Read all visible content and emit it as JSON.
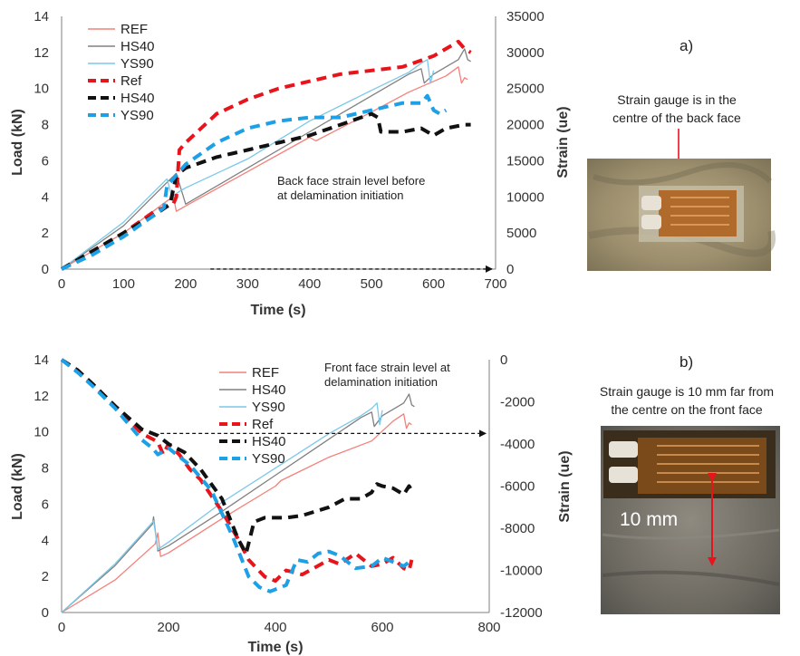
{
  "chart_data": [
    {
      "type": "line",
      "panel_label": "a)",
      "xlabel": "Time (s)",
      "ylabel": "Load (kN)",
      "y2label": "Strain (ue)",
      "xlim": [
        0,
        700
      ],
      "ylim": [
        0,
        14
      ],
      "y2lim": [
        0,
        35000
      ],
      "xticks": [
        "0",
        "100",
        "200",
        "300",
        "400",
        "500",
        "600",
        "700"
      ],
      "yticks": [
        "0",
        "2",
        "4",
        "6",
        "8",
        "10",
        "12",
        "14"
      ],
      "y2ticks": [
        "0",
        "5000",
        "10000",
        "15000",
        "20000",
        "25000",
        "30000",
        "35000"
      ],
      "legend_position": "top-left",
      "grid": false,
      "annotation": {
        "lines": [
          "Back face strain level before",
          "at delamination initiation"
        ],
        "arrow_from": [
          240,
          9.2
        ],
        "arrow_to": [
          695,
          9.2
        ]
      },
      "photo": {
        "caption_lines": [
          "Strain gauge is in the",
          "centre of the back face"
        ]
      },
      "series": [
        {
          "name": "REF",
          "axis": "left",
          "style": "solid",
          "color": "#f4807a",
          "x": [
            0,
            100,
            175,
            178,
            185,
            200,
            300,
            400,
            410,
            500,
            560,
            620,
            640,
            645,
            650,
            655
          ],
          "y": [
            0,
            2.0,
            3.9,
            4.4,
            3.2,
            3.5,
            5.4,
            7.3,
            7.1,
            8.7,
            9.8,
            10.7,
            11.2,
            10.3,
            10.6,
            10.5
          ]
        },
        {
          "name": "HS40",
          "axis": "left",
          "style": "solid",
          "color": "#808080",
          "x": [
            0,
            100,
            170,
            185,
            200,
            300,
            400,
            500,
            560,
            580,
            585,
            600,
            640,
            650,
            655,
            660
          ],
          "y": [
            0,
            2.4,
            4.8,
            5.3,
            3.6,
            5.6,
            7.6,
            9.6,
            10.8,
            11.1,
            10.3,
            10.8,
            11.6,
            12.2,
            11.6,
            11.5
          ]
        },
        {
          "name": "YS90",
          "axis": "left",
          "style": "solid",
          "color": "#7cc8e8",
          "x": [
            0,
            100,
            170,
            178,
            190,
            200,
            300,
            400,
            500,
            560,
            580,
            590,
            595,
            600
          ],
          "y": [
            0,
            2.6,
            5.0,
            4.0,
            4.3,
            4.5,
            6.1,
            8.2,
            9.9,
            10.9,
            11.4,
            11.6,
            10.3,
            11.0
          ]
        },
        {
          "name": "Ref",
          "axis": "right",
          "style": "dashed",
          "color": "#e8141c",
          "x": [
            0,
            50,
            100,
            150,
            180,
            185,
            190,
            200,
            250,
            300,
            350,
            400,
            450,
            500,
            550,
            600,
            640,
            650,
            660
          ],
          "y": [
            0,
            2500,
            5000,
            8000,
            9000,
            10000,
            16500,
            17500,
            21500,
            23500,
            25000,
            26000,
            27000,
            27500,
            28000,
            29500,
            31500,
            30500,
            30000
          ]
        },
        {
          "name": "HS40",
          "axis": "right",
          "style": "dashed",
          "color": "#111111",
          "x": [
            0,
            50,
            100,
            150,
            175,
            185,
            200,
            250,
            300,
            350,
            400,
            450,
            500,
            510,
            515,
            520,
            550,
            580,
            600,
            620,
            650,
            660
          ],
          "y": [
            0,
            2500,
            5000,
            7500,
            9000,
            13000,
            14000,
            15500,
            16500,
            17500,
            18500,
            20000,
            21500,
            21000,
            19000,
            19000,
            19000,
            19500,
            18500,
            19500,
            20000,
            20000
          ]
        },
        {
          "name": "YS90",
          "axis": "right",
          "style": "dashed",
          "color": "#1ea0e6",
          "x": [
            0,
            50,
            100,
            150,
            165,
            170,
            180,
            200,
            250,
            300,
            350,
            400,
            450,
            500,
            550,
            580,
            590,
            600,
            610,
            620
          ],
          "y": [
            0,
            2000,
            4500,
            7500,
            8500,
            11500,
            12500,
            14500,
            17500,
            19500,
            20500,
            21000,
            21000,
            22000,
            23000,
            23000,
            24000,
            22000,
            21500,
            22000
          ]
        }
      ]
    },
    {
      "type": "line",
      "panel_label": "b)",
      "xlabel": "Time (s)",
      "ylabel": "Load (kN)",
      "y2label": "Strain (ue)",
      "xlim": [
        0,
        800
      ],
      "ylim": [
        0,
        14
      ],
      "y2lim": [
        -12000,
        0
      ],
      "xticks": [
        "0",
        "200",
        "400",
        "600",
        "800"
      ],
      "yticks": [
        "0",
        "2",
        "4",
        "6",
        "8",
        "10",
        "12",
        "14"
      ],
      "y2ticks": [
        "0",
        "-2000",
        "-4000",
        "-6000",
        "-8000",
        "-10000",
        "-12000"
      ],
      "legend_position": "top-center",
      "grid": false,
      "annotation": {
        "lines": [
          "Front face strain level at",
          "delamination initiation"
        ],
        "arrow_from": [
          185,
          -3500
        ],
        "arrow_to": [
          795,
          -3500
        ]
      },
      "photo": {
        "caption_lines": [
          "Strain gauge is 10 mm far from",
          "the centre on the front face"
        ],
        "scale_label": "10 mm"
      },
      "series": [
        {
          "name": "REF",
          "axis": "left",
          "style": "solid",
          "color": "#f4807a",
          "x": [
            0,
            100,
            175,
            180,
            185,
            200,
            300,
            400,
            410,
            500,
            580,
            620,
            640,
            645,
            650,
            655
          ],
          "y": [
            0,
            1.8,
            3.8,
            4.4,
            3.1,
            3.3,
            5.2,
            7.0,
            7.3,
            8.6,
            9.5,
            10.6,
            11.0,
            10.2,
            10.5,
            10.4
          ]
        },
        {
          "name": "HS40",
          "axis": "left",
          "style": "solid",
          "color": "#808080",
          "x": [
            0,
            100,
            170,
            172,
            180,
            200,
            300,
            400,
            500,
            560,
            580,
            585,
            600,
            640,
            650,
            655,
            660
          ],
          "y": [
            0,
            2.6,
            4.9,
            5.3,
            3.4,
            3.7,
            5.6,
            7.6,
            9.6,
            10.8,
            11.1,
            10.3,
            10.9,
            11.6,
            12.1,
            11.5,
            11.4
          ]
        },
        {
          "name": "YS90",
          "axis": "left",
          "style": "solid",
          "color": "#7cc8e8",
          "x": [
            0,
            100,
            170,
            172,
            180,
            200,
            300,
            400,
            500,
            560,
            580,
            590,
            595,
            600
          ],
          "y": [
            0,
            2.7,
            5.0,
            5.1,
            3.5,
            3.9,
            6.1,
            8.0,
            9.9,
            10.9,
            11.3,
            11.6,
            10.4,
            11.2
          ]
        },
        {
          "name": "Ref",
          "axis": "right",
          "style": "dashed",
          "color": "#e8141c",
          "x": [
            0,
            30,
            60,
            100,
            150,
            180,
            190,
            200,
            220,
            240,
            260,
            300,
            330,
            350,
            380,
            400,
            420,
            450,
            500,
            520,
            550,
            580,
            600,
            620,
            640,
            650,
            655
          ],
          "y": [
            0,
            -500,
            -1200,
            -2200,
            -3500,
            -3900,
            -4500,
            -4000,
            -4500,
            -5200,
            -5700,
            -7200,
            -8500,
            -9500,
            -10300,
            -10500,
            -10000,
            -10200,
            -9500,
            -9700,
            -9200,
            -9800,
            -9700,
            -9400,
            -9900,
            -10000,
            -9500
          ]
        },
        {
          "name": "HS40",
          "axis": "right",
          "style": "dashed",
          "color": "#111111",
          "x": [
            0,
            30,
            60,
            100,
            150,
            170,
            180,
            200,
            230,
            260,
            300,
            330,
            345,
            360,
            380,
            420,
            450,
            500,
            530,
            560,
            580,
            590,
            600,
            620,
            640,
            650,
            655
          ],
          "y": [
            0,
            -500,
            -1200,
            -2200,
            -3300,
            -3500,
            -3600,
            -4000,
            -4400,
            -5200,
            -6600,
            -8500,
            -9200,
            -7700,
            -7500,
            -7500,
            -7400,
            -7000,
            -6600,
            -6600,
            -6300,
            -5900,
            -6000,
            -6100,
            -6400,
            -6000,
            -6200
          ]
        },
        {
          "name": "YS90",
          "axis": "right",
          "style": "dashed",
          "color": "#1ea0e6",
          "x": [
            0,
            30,
            60,
            100,
            150,
            170,
            180,
            200,
            240,
            280,
            320,
            350,
            370,
            390,
            420,
            440,
            460,
            480,
            500,
            520,
            550,
            580,
            600,
            620,
            640,
            650
          ],
          "y": [
            0,
            -600,
            -1300,
            -2300,
            -3800,
            -4200,
            -4500,
            -4200,
            -5000,
            -6200,
            -8400,
            -10300,
            -10800,
            -11000,
            -10700,
            -9500,
            -9600,
            -9200,
            -9100,
            -9300,
            -9900,
            -9800,
            -9400,
            -9600,
            -9800,
            -9600
          ]
        }
      ]
    }
  ]
}
